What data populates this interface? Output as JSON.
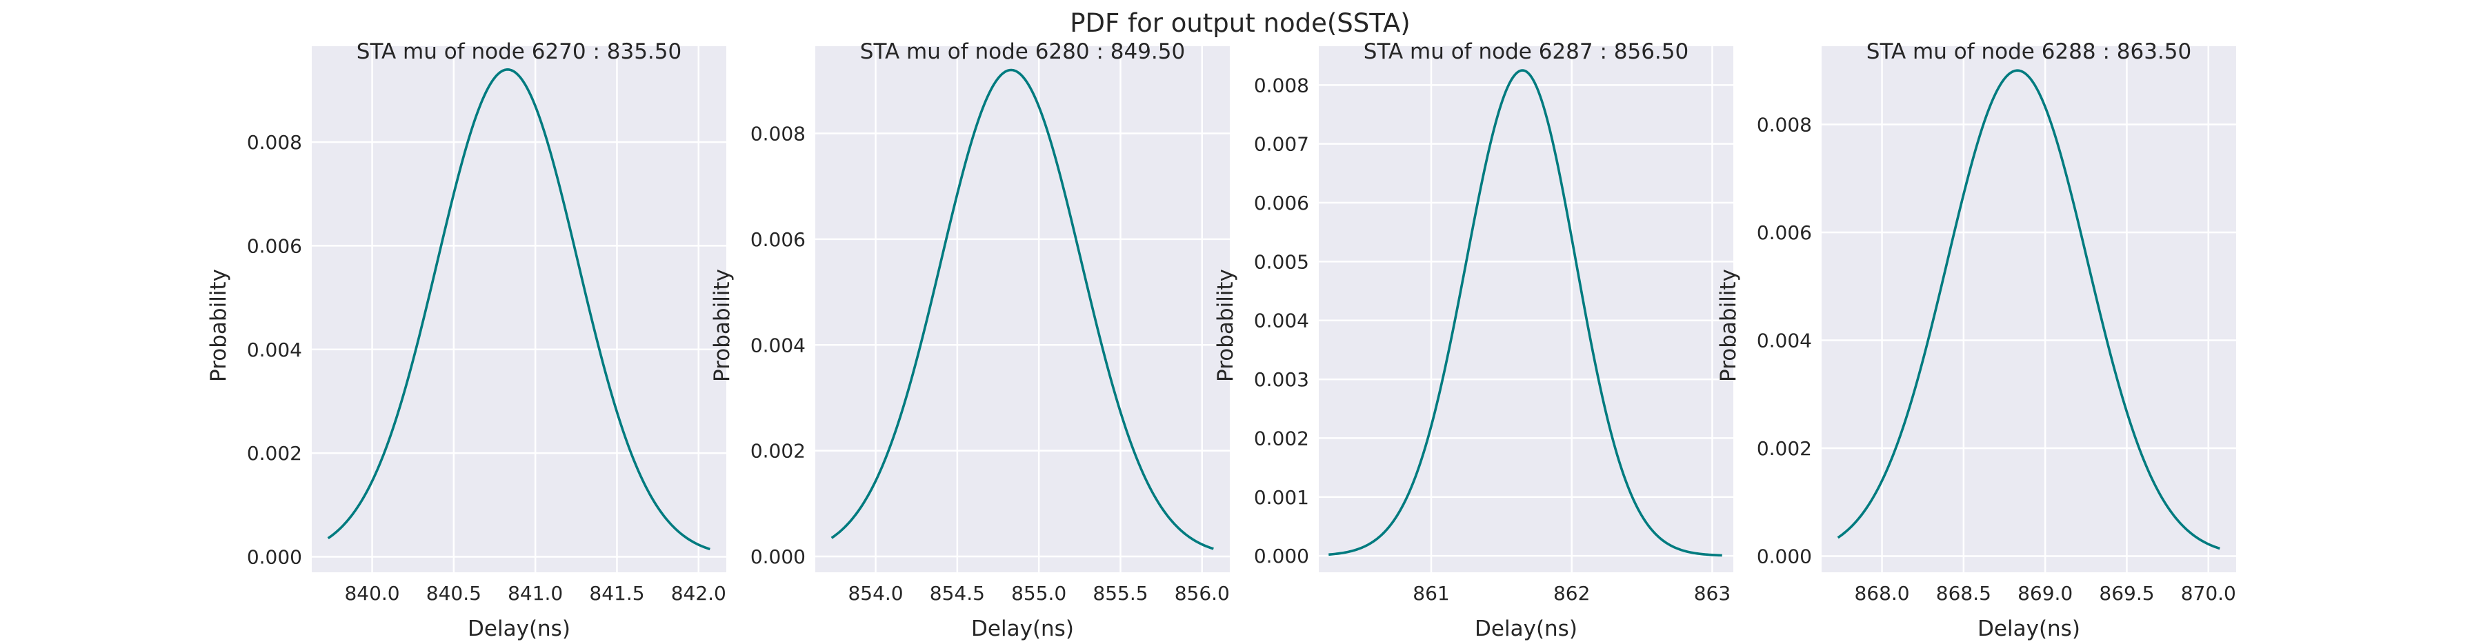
{
  "figure": {
    "title": "PDF for output node(SSTA)",
    "line_color": "#007b7f",
    "background_color": "#eaeaf2"
  },
  "chart_data": [
    {
      "type": "line",
      "title": "STA mu of node 6270 : 835.50",
      "xlabel": "Delay(ns)",
      "ylabel": "Probability",
      "mean": 840.83,
      "std": 0.43,
      "peak": 0.0094,
      "xlim": [
        839.63,
        842.17
      ],
      "ylim": [
        -0.0003,
        0.00985
      ],
      "x_range": [
        839.73,
        842.07
      ],
      "xticks": [
        840.0,
        840.5,
        841.0,
        841.5,
        842.0
      ],
      "xtick_labels": [
        "840.0",
        "840.5",
        "841.0",
        "841.5",
        "842.0"
      ],
      "yticks": [
        0.0,
        0.002,
        0.004,
        0.006,
        0.008
      ],
      "ytick_labels": [
        "0.000",
        "0.002",
        "0.004",
        "0.006",
        "0.008"
      ]
    },
    {
      "type": "line",
      "title": "STA mu of node 6280 : 849.50",
      "xlabel": "Delay(ns)",
      "ylabel": "Probability",
      "mean": 854.83,
      "std": 0.43,
      "peak": 0.0092,
      "xlim": [
        853.63,
        856.17
      ],
      "ylim": [
        -0.0003,
        0.00965
      ],
      "x_range": [
        853.73,
        856.07
      ],
      "xticks": [
        854.0,
        854.5,
        855.0,
        855.5,
        856.0
      ],
      "xtick_labels": [
        "854.0",
        "854.5",
        "855.0",
        "855.5",
        "856.0"
      ],
      "yticks": [
        0.0,
        0.002,
        0.004,
        0.006,
        0.008
      ],
      "ytick_labels": [
        "0.000",
        "0.002",
        "0.004",
        "0.006",
        "0.008"
      ]
    },
    {
      "type": "line",
      "title": "STA mu of node 6287 : 856.50",
      "xlabel": "Delay(ns)",
      "ylabel": "Probability",
      "mean": 861.65,
      "std_left": 0.4,
      "std_right": 0.38,
      "peak": 0.00825,
      "xlim": [
        860.2,
        863.15
      ],
      "ylim": [
        -0.00028,
        0.00866
      ],
      "x_range": [
        860.27,
        863.07
      ],
      "xticks": [
        861,
        862,
        863
      ],
      "xtick_labels": [
        "861",
        "862",
        "863"
      ],
      "yticks": [
        0.0,
        0.001,
        0.002,
        0.003,
        0.004,
        0.005,
        0.006,
        0.007,
        0.008
      ],
      "ytick_labels": [
        "0.000",
        "0.001",
        "0.002",
        "0.003",
        "0.004",
        "0.005",
        "0.006",
        "0.007",
        "0.008"
      ]
    },
    {
      "type": "line",
      "title": "STA mu of node 6288 : 863.50",
      "xlabel": "Delay(ns)",
      "ylabel": "Probability",
      "mean": 868.83,
      "std": 0.43,
      "peak": 0.009,
      "xlim": [
        867.63,
        870.17
      ],
      "ylim": [
        -0.0003,
        0.00945
      ],
      "x_range": [
        867.73,
        870.07
      ],
      "xticks": [
        868.0,
        868.5,
        869.0,
        869.5,
        870.0
      ],
      "xtick_labels": [
        "868.0",
        "868.5",
        "869.0",
        "869.5",
        "870.0"
      ],
      "yticks": [
        0.0,
        0.002,
        0.004,
        0.006,
        0.008
      ],
      "ytick_labels": [
        "0.000",
        "0.002",
        "0.004",
        "0.006",
        "0.008"
      ]
    }
  ]
}
